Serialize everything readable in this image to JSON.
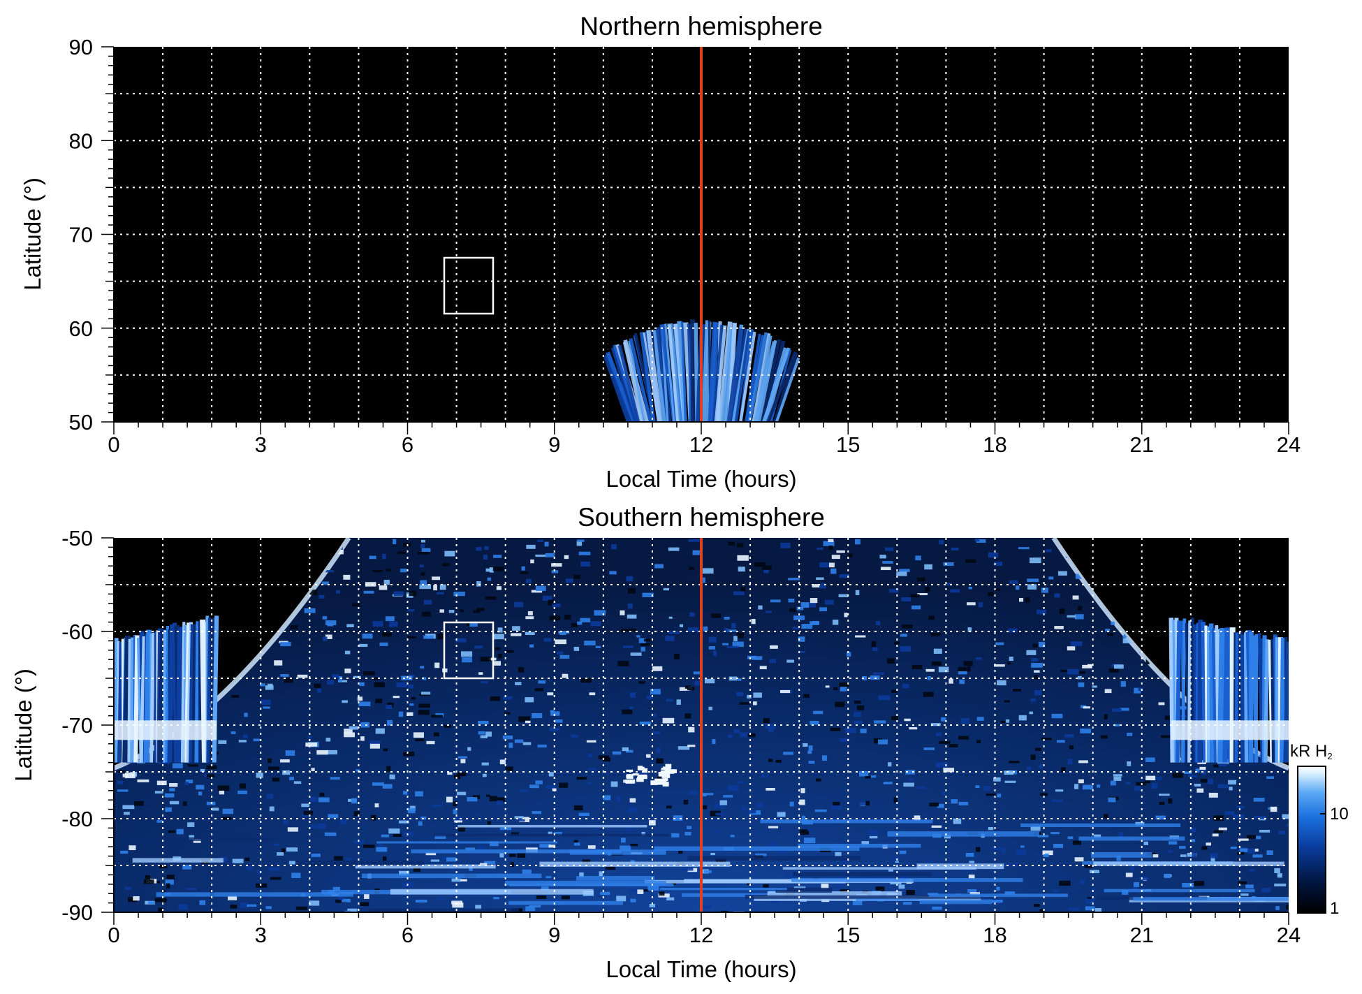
{
  "chart_data": [
    {
      "type": "heatmap",
      "title": "Northern hemisphere",
      "xlabel": "Local Time (hours)",
      "ylabel": "Latitude (°)",
      "xlim": [
        0,
        24
      ],
      "ylim": [
        50,
        90
      ],
      "x_ticks": [
        "0",
        "3",
        "6",
        "9",
        "12",
        "15",
        "18",
        "21",
        "24"
      ],
      "y_ticks": [
        "50",
        "60",
        "70",
        "80",
        "90"
      ],
      "grid": true,
      "background": "#000000",
      "noon_line_x": 12,
      "noon_line_color": "#e0401c",
      "marker_box": {
        "x": [
          6.7,
          7.7
        ],
        "y": [
          61.5,
          67.5
        ]
      },
      "emission_regions": [
        {
          "lt_range": [
            9.8,
            13.8
          ],
          "lat_range": [
            50,
            61
          ],
          "shape": "dome-centered-noon",
          "intensity_kR": "1-10"
        }
      ]
    },
    {
      "type": "heatmap",
      "title": "Southern hemisphere",
      "xlabel": "Local Time (hours)",
      "ylabel": "Latitude (°)",
      "xlim": [
        0,
        24
      ],
      "ylim": [
        -90,
        -50
      ],
      "x_ticks": [
        "0",
        "3",
        "6",
        "9",
        "12",
        "15",
        "18",
        "21",
        "24"
      ],
      "y_ticks": [
        "-50",
        "-60",
        "-70",
        "-80",
        "-90"
      ],
      "grid": true,
      "background": "#000000",
      "noon_line_x": 12,
      "noon_line_color": "#e0401c",
      "marker_box": {
        "x": [
          6.7,
          7.7
        ],
        "y": [
          -65,
          -59
        ]
      },
      "emission_regions": [
        {
          "lt_range": [
            0,
            24
          ],
          "lat_range": [
            -90,
            -50
          ],
          "shape": "speckled-fill-inside-arcs",
          "intensity_kR": "1-10"
        },
        {
          "lt_range": [
            0,
            2.1
          ],
          "lat_range": [
            -74,
            -58
          ],
          "shape": "bright-patch",
          "intensity_kR": "10-30"
        },
        {
          "lt_range": [
            21.6,
            24
          ],
          "lat_range": [
            -74,
            -58
          ],
          "shape": "bright-patch",
          "intensity_kR": "10-30"
        },
        {
          "lt_range": [
            10.3,
            11.3
          ],
          "lat_range": [
            -76,
            -74
          ],
          "shape": "bright-spot",
          "intensity_kR": "10-30"
        }
      ]
    }
  ],
  "colorbar": {
    "label_main": "kR H",
    "label_sub": "2",
    "scale": "log",
    "ticks": [
      "10",
      "1"
    ],
    "colors": [
      "#000000",
      "#00143c",
      "#0a3c9e",
      "#1a6fdc",
      "#5aa8f4",
      "#d8eeff",
      "#ffffff"
    ]
  }
}
